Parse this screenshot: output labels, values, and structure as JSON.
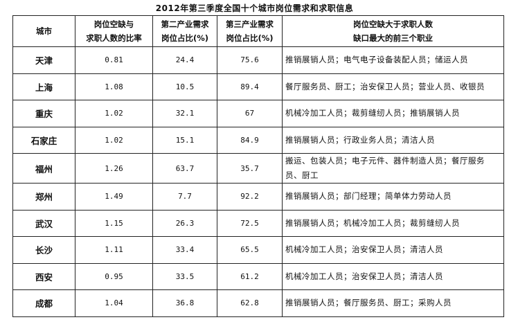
{
  "title": "2012年第三季度全国十个城市岗位需求和求职信息",
  "headers": {
    "city": "城市",
    "ratio": [
      "岗位空缺与",
      "求职人数的比率"
    ],
    "secondary": [
      "第二产业需求",
      "岗位占比(%)"
    ],
    "tertiary": [
      "第三产业需求",
      "岗位占比(%)"
    ],
    "jobs": [
      "岗位空缺大于求职人数",
      "缺口最大的前三个职业"
    ]
  },
  "rows": [
    {
      "city": "天津",
      "ratio": "0.81",
      "secondary": "24.4",
      "tertiary": "75.6",
      "jobs": "推销展销人员；电气电子设备装配人员；储运人员"
    },
    {
      "city": "上海",
      "ratio": "1.08",
      "secondary": "10.5",
      "tertiary": "89.4",
      "jobs": "餐厅服务员、厨工；治安保卫人员；营业人员、收银员"
    },
    {
      "city": "重庆",
      "ratio": "1.02",
      "secondary": "32.1",
      "tertiary": "67",
      "jobs": "机械冷加工人员；裁剪缝纫人员；推销展销人员"
    },
    {
      "city": "石家庄",
      "ratio": "1.02",
      "secondary": "15.1",
      "tertiary": "84.9",
      "jobs": "推销展销人员；行政业务人员；清洁人员"
    },
    {
      "city": "福州",
      "ratio": "1.26",
      "secondary": "63.7",
      "tertiary": "35.7",
      "jobs": "搬运、包装人员；电子元件、器件制造人员；餐厅服务员、厨工"
    },
    {
      "city": "郑州",
      "ratio": "1.49",
      "secondary": "7.7",
      "tertiary": "92.2",
      "jobs": "推销展销人员；部门经理；简单体力劳动人员"
    },
    {
      "city": "武汉",
      "ratio": "1.15",
      "secondary": "26.3",
      "tertiary": "72.5",
      "jobs": "推销展销人员；机械冷加工人员；裁剪缝纫人员"
    },
    {
      "city": "长沙",
      "ratio": "1.11",
      "secondary": "33.4",
      "tertiary": "65.5",
      "jobs": "机械冷加工人员；治安保卫人员；清洁人员"
    },
    {
      "city": "西安",
      "ratio": "0.95",
      "secondary": "33.5",
      "tertiary": "61.2",
      "jobs": "机械冷加工人员；治安保卫人员；清洁人员"
    },
    {
      "city": "成都",
      "ratio": "1.04",
      "secondary": "36.8",
      "tertiary": "62.8",
      "jobs": "推销展销人员；餐厅服务员、厨工；采购人员"
    }
  ]
}
